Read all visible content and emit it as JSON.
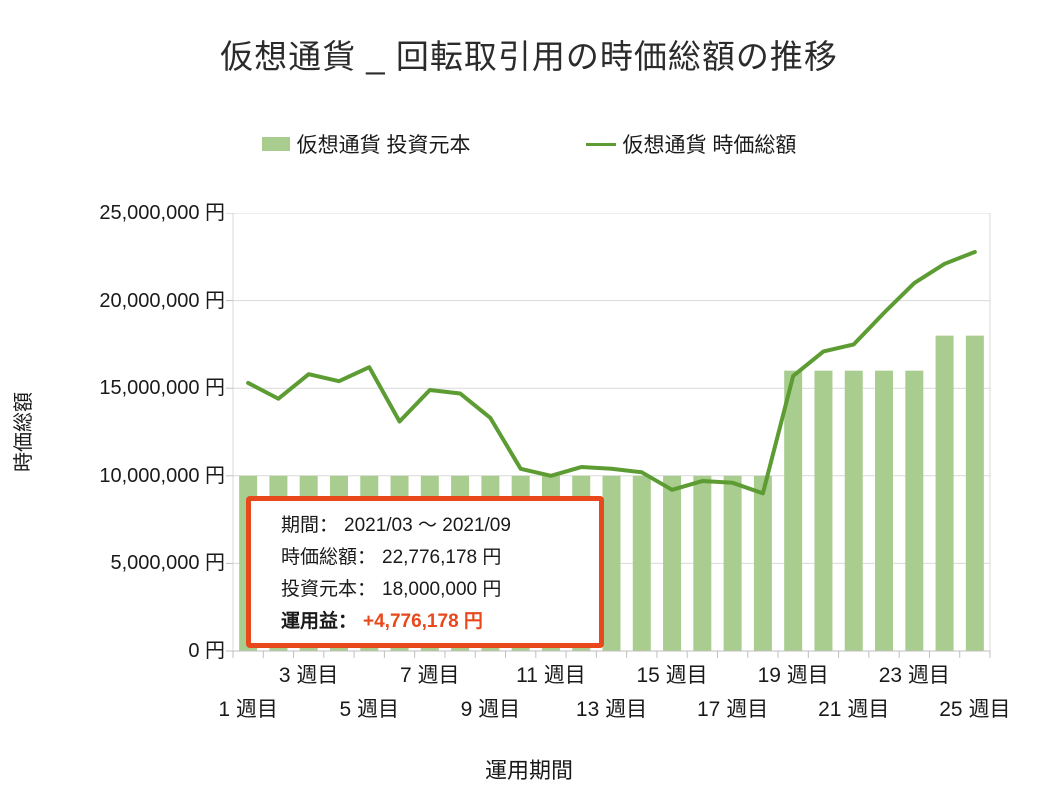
{
  "title": "仮想通貨 _ 回転取引用の時価総額の推移",
  "colors": {
    "bar": "#a9cd8e",
    "line": "#5c9c33",
    "grid": "#d9d9d9",
    "axis": "#bfbfbf",
    "accent": "#e8481c",
    "text": "#1a1a1a"
  },
  "legend": {
    "items": [
      {
        "label": "仮想通貨 投資元本",
        "type": "bar"
      },
      {
        "label": "仮想通貨 時価総額",
        "type": "line"
      }
    ]
  },
  "chart_data": {
    "type": "bar",
    "title": "仮想通貨 _ 回転取引用の時価総額の推移",
    "xlabel": "運用期間",
    "ylabel": "時価総額",
    "ylim": [
      0,
      25000000
    ],
    "ytick_step": 5000000,
    "grid": "horizontal",
    "legend_position": "top",
    "categories": [
      1,
      2,
      3,
      4,
      5,
      6,
      7,
      8,
      9,
      10,
      11,
      12,
      13,
      14,
      15,
      16,
      17,
      18,
      19,
      20,
      21,
      22,
      23,
      24,
      25
    ],
    "series": [
      {
        "name": "仮想通貨 投資元本",
        "type": "bar",
        "values": [
          10000000,
          10000000,
          10000000,
          10000000,
          10000000,
          10000000,
          10000000,
          10000000,
          10000000,
          10000000,
          10000000,
          10000000,
          10000000,
          10000000,
          10000000,
          10000000,
          10000000,
          10000000,
          16000000,
          16000000,
          16000000,
          16000000,
          16000000,
          18000000,
          18000000
        ]
      },
      {
        "name": "仮想通貨 時価総額",
        "type": "line",
        "values": [
          15300000,
          14400000,
          15800000,
          15400000,
          16200000,
          13100000,
          14900000,
          14700000,
          13300000,
          10400000,
          10000000,
          10500000,
          10400000,
          10200000,
          9200000,
          9700000,
          9600000,
          9000000,
          15700000,
          17100000,
          17500000,
          19300000,
          21000000,
          22100000,
          22776178
        ]
      }
    ],
    "yticks": [
      {
        "label": "25,000,000 円",
        "value": 25000000
      },
      {
        "label": "20,000,000 円",
        "value": 20000000
      },
      {
        "label": "15,000,000 円",
        "value": 15000000
      },
      {
        "label": "10,000,000 円",
        "value": 10000000
      },
      {
        "label": "5,000,000 円",
        "value": 5000000
      },
      {
        "label": "0 円",
        "value": 0
      }
    ],
    "xticks_upper_row": [
      {
        "label": "3 週目",
        "week": 3
      },
      {
        "label": "7 週目",
        "week": 7
      },
      {
        "label": "11 週目",
        "week": 11
      },
      {
        "label": "15 週目",
        "week": 15
      },
      {
        "label": "19 週目",
        "week": 19
      },
      {
        "label": "23 週目",
        "week": 23
      }
    ],
    "xticks_lower_row": [
      {
        "label": "1 週目",
        "week": 1
      },
      {
        "label": "5 週目",
        "week": 5
      },
      {
        "label": "9 週目",
        "week": 9
      },
      {
        "label": "13 週目",
        "week": 13
      },
      {
        "label": "17 週目",
        "week": 17
      },
      {
        "label": "21 週目",
        "week": 21
      },
      {
        "label": "25 週目",
        "week": 25
      }
    ]
  },
  "annotation": {
    "lines": [
      {
        "label": "期間：",
        "value": "2021/03 ～ 2021/09",
        "bold": false,
        "highlight": false
      },
      {
        "label": "時価総額：",
        "value": "22,776,178 円",
        "bold": false,
        "highlight": false
      },
      {
        "label": "投資元本：",
        "value": "18,000,000 円",
        "bold": false,
        "highlight": false
      },
      {
        "label": "運用益：",
        "value": "+4,776,178 円",
        "bold": true,
        "highlight": true
      }
    ]
  }
}
